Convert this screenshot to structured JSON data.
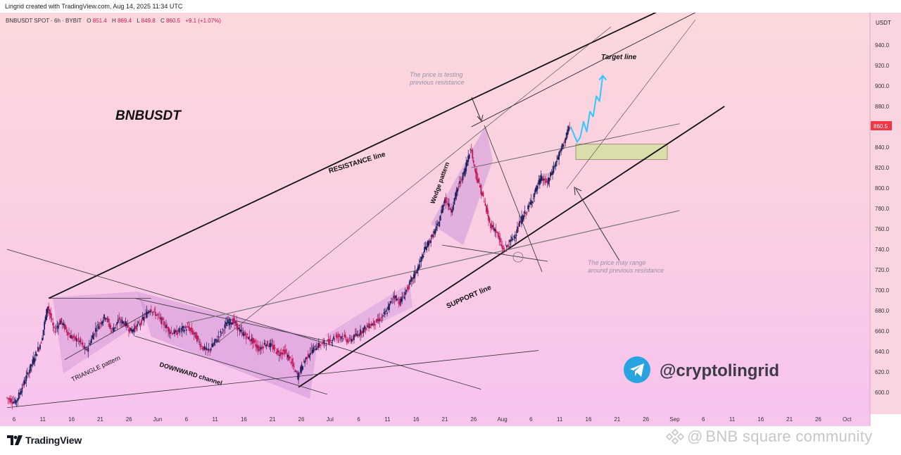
{
  "header": {
    "created_by": "Lingrid created with TradingView.com, Aug 14, 2025 11:34 UTC"
  },
  "legend": {
    "symbol": "BNBUSDT SPOT · 6h · BYBIT",
    "open_label": "O",
    "open": "851.4",
    "high_label": "H",
    "high": "869.4",
    "low_label": "L",
    "low": "849.8",
    "close_label": "C",
    "close": "860.5",
    "change": "+9.1 (+1.07%)"
  },
  "price_axis": {
    "currency": "USDT",
    "current_price": "860.5",
    "current_price_color": "#f23645"
  },
  "annotations": {
    "ticker_title": "BNBUSDT",
    "resistance": "RESISTANCE line",
    "support": "SUPPORT line",
    "target": "Target line",
    "wedge": "Wedge pattern",
    "triangle": "TRIANGLE pattern",
    "downward": "DOWNWARD channel",
    "testing_1": "The price is testing",
    "testing_2": "previous resistance",
    "range_1": "The price may range",
    "range_2": "around previous resistance",
    "handle": "@cryptolingrid"
  },
  "branding": {
    "tradingview": "TradingView",
    "watermark": "BNB square community",
    "telegram_color": "#2aa4e0"
  },
  "colors": {
    "up_candle": "#1f1f5c",
    "down_candle": "#c2185b",
    "bg_top": "#fcd6dc",
    "bg_bottom": "#f7c4ee",
    "projection": "#2fc7ff",
    "zone_fill": "#d8dfa6"
  },
  "chart_data": {
    "type": "candlestick",
    "symbol": "BNBUSDT",
    "interval": "6h",
    "ylim": [
      585,
      960
    ],
    "yticks": [
      600,
      620,
      640,
      660,
      680,
      700,
      720,
      740,
      760,
      780,
      800,
      820,
      840,
      860,
      880,
      900,
      920,
      940
    ],
    "xticks": [
      "6",
      "11",
      "16",
      "21",
      "26",
      "Jun",
      "6",
      "11",
      "16",
      "21",
      "26",
      "Jul",
      "6",
      "11",
      "16",
      "21",
      "26",
      "Aug",
      "6",
      "11",
      "16",
      "21",
      "26",
      "Sep",
      "6",
      "11",
      "16",
      "21",
      "26",
      "Oct"
    ],
    "price_path": [
      [
        0,
        595
      ],
      [
        3,
        590
      ],
      [
        7,
        620
      ],
      [
        11,
        650
      ],
      [
        13,
        685
      ],
      [
        15,
        660
      ],
      [
        17,
        670
      ],
      [
        20,
        655
      ],
      [
        23,
        650
      ],
      [
        25,
        640
      ],
      [
        28,
        662
      ],
      [
        31,
        675
      ],
      [
        33,
        660
      ],
      [
        35,
        670
      ],
      [
        37,
        668
      ],
      [
        39,
        660
      ],
      [
        42,
        668
      ],
      [
        45,
        682
      ],
      [
        47,
        676
      ],
      [
        49,
        668
      ],
      [
        51,
        660
      ],
      [
        53,
        658
      ],
      [
        55,
        662
      ],
      [
        57,
        663
      ],
      [
        59,
        656
      ],
      [
        61,
        645
      ],
      [
        63,
        640
      ],
      [
        65,
        648
      ],
      [
        67,
        658
      ],
      [
        69,
        668
      ],
      [
        71,
        670
      ],
      [
        73,
        660
      ],
      [
        75,
        655
      ],
      [
        77,
        650
      ],
      [
        79,
        642
      ],
      [
        81,
        648
      ],
      [
        83,
        645
      ],
      [
        85,
        638
      ],
      [
        87,
        640
      ],
      [
        89,
        630
      ],
      [
        91,
        615
      ],
      [
        93,
        630
      ],
      [
        95,
        640
      ],
      [
        97,
        645
      ],
      [
        99,
        648
      ],
      [
        101,
        650
      ],
      [
        103,
        655
      ],
      [
        105,
        655
      ],
      [
        107,
        650
      ],
      [
        109,
        655
      ],
      [
        111,
        660
      ],
      [
        113,
        665
      ],
      [
        115,
        668
      ],
      [
        117,
        672
      ],
      [
        119,
        680
      ],
      [
        121,
        695
      ],
      [
        123,
        688
      ],
      [
        125,
        700
      ],
      [
        127,
        712
      ],
      [
        129,
        725
      ],
      [
        131,
        742
      ],
      [
        133,
        752
      ],
      [
        135,
        765
      ],
      [
        137,
        790
      ],
      [
        139,
        778
      ],
      [
        141,
        800
      ],
      [
        143,
        815
      ],
      [
        145,
        840
      ],
      [
        147,
        810
      ],
      [
        149,
        790
      ],
      [
        151,
        765
      ],
      [
        153,
        758
      ],
      [
        155,
        740
      ],
      [
        157,
        745
      ],
      [
        159,
        755
      ],
      [
        161,
        770
      ],
      [
        163,
        780
      ],
      [
        165,
        795
      ],
      [
        167,
        810
      ],
      [
        169,
        805
      ],
      [
        171,
        820
      ],
      [
        173,
        835
      ],
      [
        175,
        852
      ],
      [
        176,
        860.5
      ]
    ],
    "projection": [
      [
        176,
        860
      ],
      [
        178,
        845
      ],
      [
        179,
        850
      ],
      [
        180,
        865
      ],
      [
        181,
        855
      ],
      [
        182,
        875
      ],
      [
        183,
        870
      ],
      [
        184,
        890
      ],
      [
        185,
        885
      ],
      [
        186,
        910
      ]
    ],
    "resistance_zone": [
      828,
      843
    ],
    "drawings": [
      {
        "name": "resistance-line",
        "from": [
          13,
          692
        ],
        "to": [
          206,
          977
        ]
      },
      {
        "name": "target-line",
        "from": [
          145,
          860
        ],
        "to": [
          220,
          980
        ]
      },
      {
        "name": "support-line",
        "from": [
          91,
          605
        ],
        "to": [
          224,
          880
        ]
      },
      {
        "name": "triangle-top",
        "from": [
          13,
          692
        ],
        "to": [
          45,
          692
        ]
      },
      {
        "name": "triangle-bottom",
        "from": [
          18,
          632
        ],
        "to": [
          45,
          680
        ]
      },
      {
        "name": "downward-channel-top",
        "from": [
          40,
          692
        ],
        "to": [
          100,
          650
        ]
      },
      {
        "name": "downward-channel-bottom",
        "from": [
          40,
          655
        ],
        "to": [
          100,
          598
        ]
      },
      {
        "name": "downtrend-line",
        "from": [
          0,
          740
        ],
        "to": [
          148,
          603
        ]
      },
      {
        "name": "bottom-trend-line",
        "from": [
          0,
          585
        ],
        "to": [
          166,
          641
        ]
      },
      {
        "name": "mid-trend-line",
        "from": [
          56,
          668
        ],
        "to": [
          210,
          778
        ]
      },
      {
        "name": "upper-channel-line",
        "from": [
          145,
          820
        ],
        "to": [
          210,
          863
        ]
      }
    ]
  }
}
